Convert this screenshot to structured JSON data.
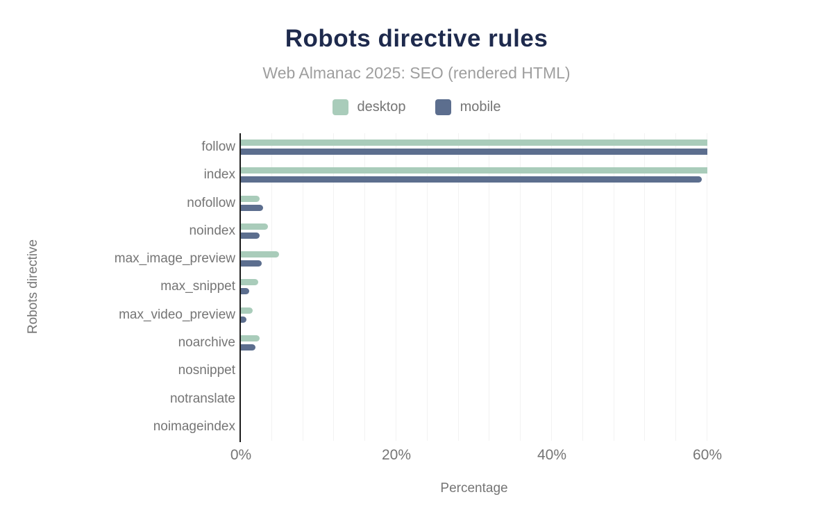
{
  "header": {
    "title": "Robots directive rules",
    "subtitle": "Web Almanac 2025: SEO (rendered HTML)"
  },
  "colors": {
    "desktop": "#a9ccba",
    "mobile": "#5c6e8e",
    "title": "#1e2a4d",
    "subtitle": "#9e9e9e",
    "axis_text": "#757575",
    "gridline": "#f2f2f2",
    "axis_line": "#1c1c1c",
    "background": "#ffffff"
  },
  "chart_data": {
    "type": "bar",
    "orientation": "horizontal",
    "title": "Robots directive rules",
    "subtitle": "Web Almanac 2025: SEO (rendered HTML)",
    "xlabel": "Percentage",
    "ylabel": "Robots directive",
    "categories": [
      "follow",
      "index",
      "nofollow",
      "noindex",
      "max_image_preview",
      "max_snippet",
      "max_video_preview",
      "noarchive",
      "nosnippet",
      "notranslate",
      "noimageindex"
    ],
    "series": [
      {
        "name": "desktop",
        "color": "#a9ccba",
        "values": [
          60.0,
          60.0,
          2.4,
          3.5,
          4.9,
          2.2,
          1.5,
          2.4,
          0,
          0,
          0
        ]
      },
      {
        "name": "mobile",
        "color": "#5c6e8e",
        "values": [
          60.0,
          59.3,
          2.9,
          2.4,
          2.7,
          1.1,
          0.7,
          1.9,
          0,
          0,
          0
        ]
      }
    ],
    "x_axis": {
      "min": 0,
      "max": 60,
      "unit": "%",
      "ticks": [
        {
          "value": 0,
          "label": "0%"
        },
        {
          "value": 20,
          "label": "20%"
        },
        {
          "value": 40,
          "label": "40%"
        },
        {
          "value": 60,
          "label": "60%"
        }
      ],
      "minor_gridline_step": 4
    },
    "legend_position": "top",
    "grid": "vertical-minor"
  }
}
